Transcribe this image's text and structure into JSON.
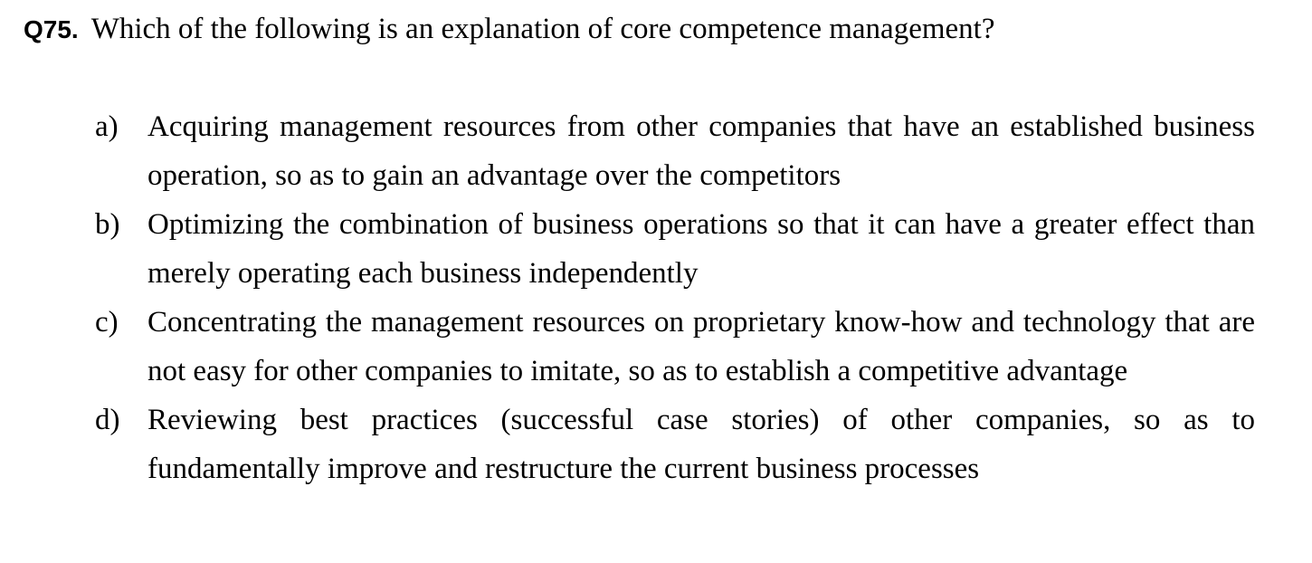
{
  "question": {
    "number": "Q75.",
    "text": "Which of the following is an explanation of core competence management?"
  },
  "options": [
    {
      "letter": "a)",
      "text": "Acquiring management resources from other companies that have an established business operation, so as to gain an advantage over the competitors"
    },
    {
      "letter": "b)",
      "text": "Optimizing the combination of business operations so that it can have a greater effect than merely operating each business independently"
    },
    {
      "letter": "c)",
      "text": "Concentrating the management resources on proprietary know-how and technology that are not easy for other companies to imitate, so as to establish a competitive advantage"
    },
    {
      "letter": "d)",
      "text": "Reviewing best practices (successful case stories) of other companies, so as to fundamentally improve and restructure the current business processes"
    }
  ]
}
